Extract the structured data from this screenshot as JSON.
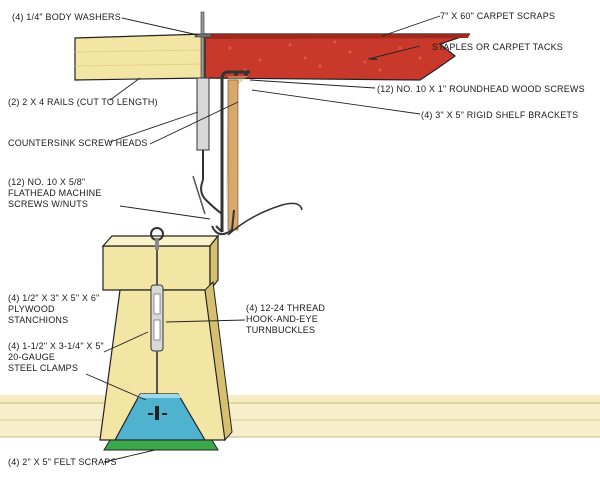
{
  "labels": {
    "body_washers": "(4) 1/4\" BODY WASHERS",
    "carpet_scraps": "7\" X 60\" CARPET SCRAPS",
    "staples": "STAPLES OR CARPET TACKS",
    "rails": "(2) 2 X 4 RAILS (CUT TO LENGTH)",
    "roundhead_screws": "(12) NO. 10 X 1\" ROUNDHEAD WOOD SCREWS",
    "shelf_brackets": "(4) 3\" X 5\" RIGID SHELF BRACKETS",
    "countersink": "COUNTERSINK SCREW HEADS",
    "flathead": [
      "(12) NO. 10 X 5/8\"",
      "FLATHEAD MACHINE",
      "SCREWS W/NUTS"
    ],
    "stanchions": [
      "(4) 1/2\" X 3\" X 5\" X 6\"",
      "PLYWOOD",
      "STANCHIONS"
    ],
    "turnbuckles": [
      "(4) 12-24 THREAD",
      "HOOK-AND-EYE",
      "TURNBUCKLES"
    ],
    "clamps": [
      "(4) 1-1/2\" X 3-1/4\" X 5\"",
      "20-GAUGE",
      "STEEL CLAMPS"
    ],
    "felt": "(4) 2\" X 5\" FELT SCRAPS"
  },
  "colors": {
    "wood": "#f3e6a4",
    "wood_dark": "#d6c070",
    "carpet": "#c8392b",
    "carpet_dark": "#9e2a1f",
    "clamp": "#4fb3cf",
    "felt": "#3aa84a",
    "metal": "#8a8a8a",
    "line": "#222222"
  }
}
